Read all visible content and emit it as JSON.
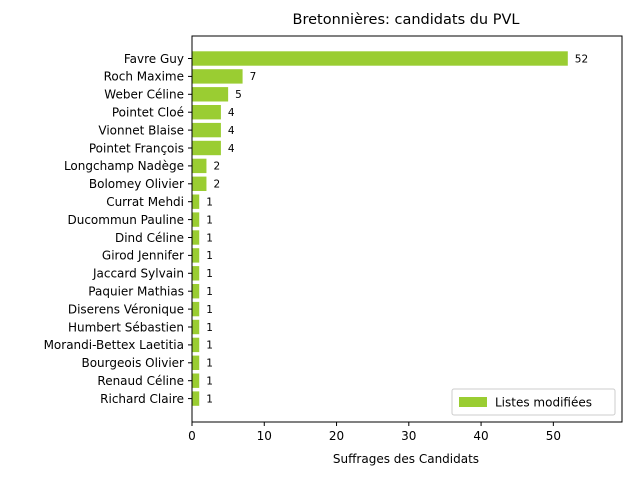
{
  "chart_data": {
    "type": "bar",
    "orientation": "horizontal",
    "title": "Bretonnières: candidats du PVL",
    "xlabel": "Suffrages des Candidats",
    "ylabel": "",
    "xlim": [
      0,
      59.5
    ],
    "xticks": [
      0,
      10,
      20,
      30,
      40,
      50
    ],
    "grid": false,
    "legend_position": "lower right",
    "categories": [
      "Favre Guy",
      "Roch Maxime",
      "Weber Céline",
      "Pointet Cloé",
      "Vionnet Blaise",
      "Pointet François",
      "Longchamp Nadège",
      "Bolomey Olivier",
      "Currat Mehdi",
      "Ducommun Pauline",
      "Dind Céline",
      "Girod Jennifer",
      "Jaccard Sylvain",
      "Paquier Mathias",
      "Diserens Véronique",
      "Humbert Sébastien",
      "Morandi-Bettex Laetitia",
      "Bourgeois Olivier",
      "Renaud Céline",
      "Richard Claire"
    ],
    "series": [
      {
        "name": "Listes modifiées",
        "color": "#9acd32",
        "values": [
          52,
          7,
          5,
          4,
          4,
          4,
          2,
          2,
          1,
          1,
          1,
          1,
          1,
          1,
          1,
          1,
          1,
          1,
          1,
          1
        ]
      }
    ]
  }
}
